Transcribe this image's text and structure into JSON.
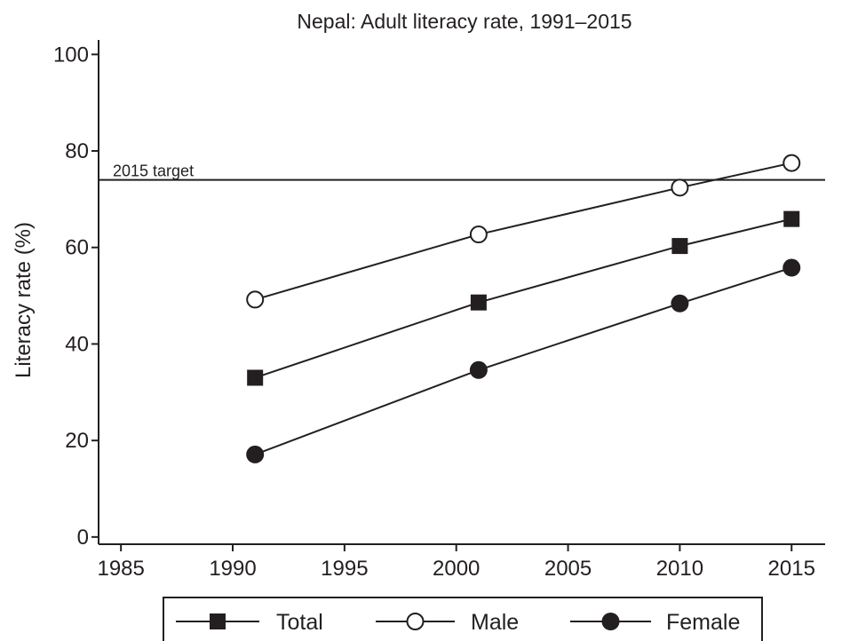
{
  "chart_data": {
    "type": "line",
    "title": "Nepal: Adult literacy rate, 1991–2015",
    "ylabel": "Literacy rate (%)",
    "xlabel": "",
    "xlim": [
      1984,
      2016.5
    ],
    "ylim": [
      -1.5,
      103
    ],
    "x_ticks": [
      1985,
      1990,
      1995,
      2000,
      2005,
      2010,
      2015
    ],
    "y_ticks": [
      0,
      20,
      40,
      60,
      80,
      100
    ],
    "grid": false,
    "legend_position": "bottom",
    "reference_line": {
      "label": "2015 target",
      "value": 74
    },
    "series": [
      {
        "name": "Total",
        "marker": "square",
        "x": [
          1991,
          2001,
          2010,
          2015
        ],
        "y": [
          33.0,
          48.6,
          60.3,
          65.9
        ]
      },
      {
        "name": "Male",
        "marker": "open-circle",
        "x": [
          1991,
          2001,
          2010,
          2015
        ],
        "y": [
          49.2,
          62.7,
          72.4,
          77.5
        ]
      },
      {
        "name": "Female",
        "marker": "filled-circle",
        "x": [
          1991,
          2001,
          2010,
          2015
        ],
        "y": [
          17.1,
          34.6,
          48.4,
          55.8
        ]
      }
    ],
    "colors": {
      "ink": "#231f20",
      "background": "#ffffff"
    }
  }
}
